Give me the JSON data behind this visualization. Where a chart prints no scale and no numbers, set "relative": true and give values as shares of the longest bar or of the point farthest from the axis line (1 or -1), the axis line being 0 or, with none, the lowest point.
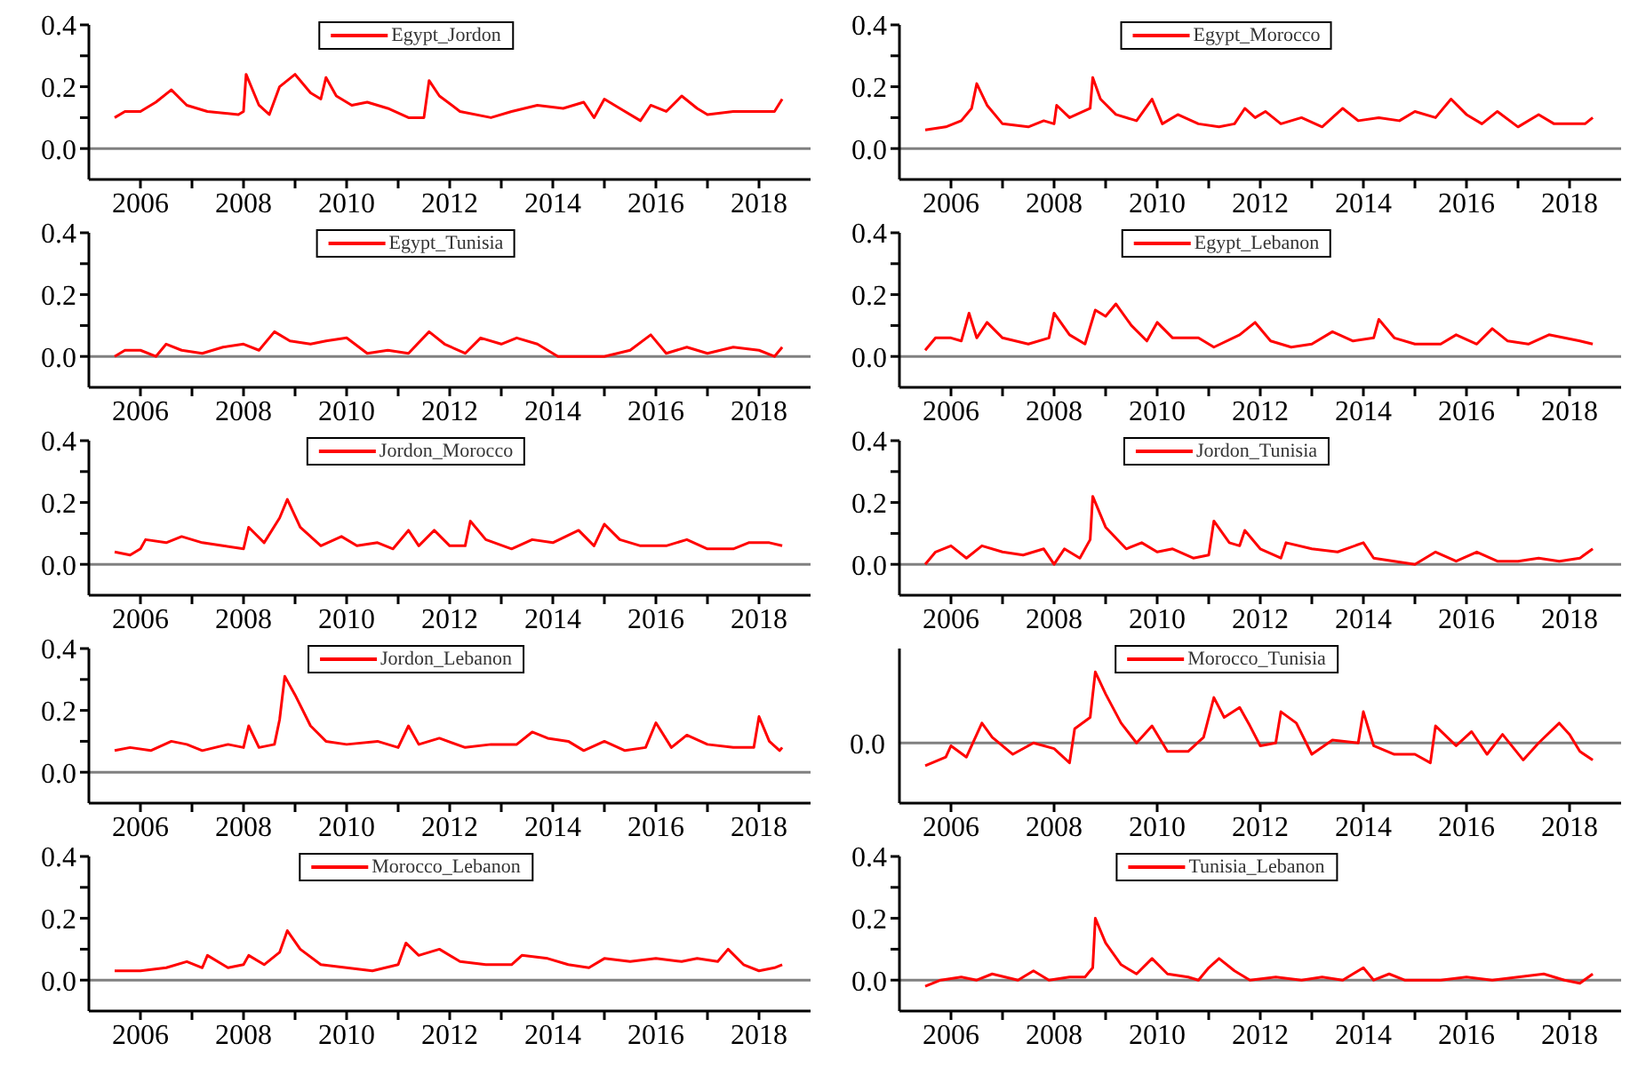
{
  "chart_data": [
    {
      "type": "line",
      "legend": "top",
      "marker": "none",
      "line_style": "solid",
      "xlim": [
        2005,
        2019
      ],
      "xticks": [
        2006,
        {
          "value": 2007,
          "label": null
        },
        2008,
        {
          "value": 2009,
          "label": null
        },
        2010,
        {
          "value": 2011,
          "label": null
        },
        2012,
        {
          "value": 2013,
          "label": null
        },
        2014,
        {
          "value": 2015,
          "label": null
        },
        2016,
        {
          "value": 2017,
          "label": null
        },
        2018
      ],
      "ylim": [
        -0.1,
        0.4
      ],
      "yticks": [
        {
          "value": 0,
          "label": "0.0"
        },
        {
          "value": 0.1,
          "label": null
        },
        {
          "value": 0.2,
          "label": "0.2"
        },
        {
          "value": 0.3,
          "label": null
        },
        {
          "value": 0.4,
          "label": "0.4"
        }
      ],
      "ref_lines": [
        {
          "axis": "y",
          "value": 0,
          "color": "#808080"
        }
      ],
      "x": [
        2005.5,
        2005.7,
        2006.0,
        2006.3,
        2006.6,
        2006.9,
        2007.3,
        2007.9,
        2008.0,
        2008.05,
        2008.3,
        2008.5,
        2008.7,
        2009.0,
        2009.3,
        2009.5,
        2009.6,
        2009.8,
        2010.1,
        2010.4,
        2010.8,
        2011.2,
        2011.5,
        2011.6,
        2011.8,
        2012.2,
        2012.8,
        2013.2,
        2013.7,
        2014.2,
        2014.6,
        2014.8,
        2015.0,
        2015.3,
        2015.7,
        2015.9,
        2016.2,
        2016.5,
        2016.8,
        2017.0,
        2017.5,
        2018.0,
        2018.3,
        2018.45
      ],
      "series": [
        {
          "name": "Egypt_Jordon",
          "color": "#ff0000",
          "values": [
            0.1,
            0.12,
            0.12,
            0.15,
            0.19,
            0.14,
            0.12,
            0.11,
            0.12,
            0.24,
            0.14,
            0.11,
            0.2,
            0.24,
            0.18,
            0.16,
            0.23,
            0.17,
            0.14,
            0.15,
            0.13,
            0.1,
            0.1,
            0.22,
            0.17,
            0.12,
            0.1,
            0.12,
            0.14,
            0.13,
            0.15,
            0.1,
            0.16,
            0.13,
            0.09,
            0.14,
            0.12,
            0.17,
            0.13,
            0.11,
            0.12,
            0.12,
            0.12,
            0.16
          ]
        }
      ]
    },
    {
      "type": "line",
      "legend": "top",
      "marker": "none",
      "line_style": "solid",
      "xlim": [
        2005,
        2019
      ],
      "xticks": [
        2006,
        {
          "value": 2007,
          "label": null
        },
        2008,
        {
          "value": 2009,
          "label": null
        },
        2010,
        {
          "value": 2011,
          "label": null
        },
        2012,
        {
          "value": 2013,
          "label": null
        },
        2014,
        {
          "value": 2015,
          "label": null
        },
        2016,
        {
          "value": 2017,
          "label": null
        },
        2018
      ],
      "ylim": [
        -0.1,
        0.4
      ],
      "yticks": [
        {
          "value": 0,
          "label": "0.0"
        },
        {
          "value": 0.1,
          "label": null
        },
        {
          "value": 0.2,
          "label": "0.2"
        },
        {
          "value": 0.3,
          "label": null
        },
        {
          "value": 0.4,
          "label": "0.4"
        }
      ],
      "ref_lines": [
        {
          "axis": "y",
          "value": 0,
          "color": "#808080"
        }
      ],
      "x": [
        2005.5,
        2005.9,
        2006.2,
        2006.4,
        2006.5,
        2006.7,
        2007.0,
        2007.5,
        2007.8,
        2008.0,
        2008.05,
        2008.3,
        2008.7,
        2008.75,
        2008.9,
        2009.2,
        2009.6,
        2009.9,
        2010.1,
        2010.4,
        2010.8,
        2011.2,
        2011.5,
        2011.7,
        2011.9,
        2012.1,
        2012.4,
        2012.8,
        2013.2,
        2013.6,
        2013.9,
        2014.3,
        2014.7,
        2015.0,
        2015.4,
        2015.7,
        2016.0,
        2016.3,
        2016.6,
        2017.0,
        2017.4,
        2017.7,
        2018.0,
        2018.3,
        2018.45
      ],
      "series": [
        {
          "name": "Egypt_Morocco",
          "color": "#ff0000",
          "values": [
            0.06,
            0.07,
            0.09,
            0.13,
            0.21,
            0.14,
            0.08,
            0.07,
            0.09,
            0.08,
            0.14,
            0.1,
            0.13,
            0.23,
            0.16,
            0.11,
            0.09,
            0.16,
            0.08,
            0.11,
            0.08,
            0.07,
            0.08,
            0.13,
            0.1,
            0.12,
            0.08,
            0.1,
            0.07,
            0.13,
            0.09,
            0.1,
            0.09,
            0.12,
            0.1,
            0.16,
            0.11,
            0.08,
            0.12,
            0.07,
            0.11,
            0.08,
            0.08,
            0.08,
            0.1
          ]
        }
      ]
    },
    {
      "type": "line",
      "legend": "top",
      "marker": "none",
      "line_style": "solid",
      "xlim": [
        2005,
        2019
      ],
      "xticks": [
        2006,
        {
          "value": 2007,
          "label": null
        },
        2008,
        {
          "value": 2009,
          "label": null
        },
        2010,
        {
          "value": 2011,
          "label": null
        },
        2012,
        {
          "value": 2013,
          "label": null
        },
        2014,
        {
          "value": 2015,
          "label": null
        },
        2016,
        {
          "value": 2017,
          "label": null
        },
        2018
      ],
      "ylim": [
        -0.1,
        0.4
      ],
      "yticks": [
        {
          "value": 0,
          "label": "0.0"
        },
        {
          "value": 0.1,
          "label": null
        },
        {
          "value": 0.2,
          "label": "0.2"
        },
        {
          "value": 0.3,
          "label": null
        },
        {
          "value": 0.4,
          "label": "0.4"
        }
      ],
      "ref_lines": [
        {
          "axis": "y",
          "value": 0,
          "color": "#808080"
        }
      ],
      "x": [
        2005.5,
        2005.7,
        2006.0,
        2006.3,
        2006.5,
        2006.8,
        2007.2,
        2007.6,
        2008.0,
        2008.3,
        2008.6,
        2008.9,
        2009.3,
        2009.6,
        2010.0,
        2010.4,
        2010.8,
        2011.2,
        2011.6,
        2011.9,
        2012.3,
        2012.6,
        2013.0,
        2013.3,
        2013.7,
        2014.1,
        2014.5,
        2015.0,
        2015.5,
        2015.9,
        2016.2,
        2016.6,
        2017.0,
        2017.5,
        2018.0,
        2018.3,
        2018.45
      ],
      "series": [
        {
          "name": "Egypt_Tunisia",
          "color": "#ff0000",
          "values": [
            0.0,
            0.02,
            0.02,
            0.0,
            0.04,
            0.02,
            0.01,
            0.03,
            0.04,
            0.02,
            0.08,
            0.05,
            0.04,
            0.05,
            0.06,
            0.01,
            0.02,
            0.01,
            0.08,
            0.04,
            0.01,
            0.06,
            0.04,
            0.06,
            0.04,
            0.0,
            0.0,
            0.0,
            0.02,
            0.07,
            0.01,
            0.03,
            0.01,
            0.03,
            0.02,
            0.0,
            0.03
          ]
        }
      ]
    },
    {
      "type": "line",
      "legend": "top",
      "marker": "none",
      "line_style": "solid",
      "xlim": [
        2005,
        2019
      ],
      "xticks": [
        2006,
        {
          "value": 2007,
          "label": null
        },
        2008,
        {
          "value": 2009,
          "label": null
        },
        2010,
        {
          "value": 2011,
          "label": null
        },
        2012,
        {
          "value": 2013,
          "label": null
        },
        2014,
        {
          "value": 2015,
          "label": null
        },
        2016,
        {
          "value": 2017,
          "label": null
        },
        2018
      ],
      "ylim": [
        -0.1,
        0.4
      ],
      "yticks": [
        {
          "value": 0,
          "label": "0.0"
        },
        {
          "value": 0.1,
          "label": null
        },
        {
          "value": 0.2,
          "label": "0.2"
        },
        {
          "value": 0.3,
          "label": null
        },
        {
          "value": 0.4,
          "label": "0.4"
        }
      ],
      "ref_lines": [
        {
          "axis": "y",
          "value": 0,
          "color": "#808080"
        }
      ],
      "x": [
        2005.5,
        2005.7,
        2006.0,
        2006.2,
        2006.35,
        2006.5,
        2006.7,
        2007.0,
        2007.5,
        2007.9,
        2008.0,
        2008.3,
        2008.6,
        2008.8,
        2009.0,
        2009.2,
        2009.5,
        2009.8,
        2010.0,
        2010.3,
        2010.8,
        2011.1,
        2011.6,
        2011.9,
        2012.2,
        2012.6,
        2013.0,
        2013.4,
        2013.8,
        2014.2,
        2014.3,
        2014.6,
        2015.0,
        2015.5,
        2015.8,
        2016.2,
        2016.5,
        2016.8,
        2017.2,
        2017.6,
        2017.9,
        2018.2,
        2018.45
      ],
      "series": [
        {
          "name": "Egypt_Lebanon",
          "color": "#ff0000",
          "values": [
            0.02,
            0.06,
            0.06,
            0.05,
            0.14,
            0.06,
            0.11,
            0.06,
            0.04,
            0.06,
            0.14,
            0.07,
            0.04,
            0.15,
            0.13,
            0.17,
            0.1,
            0.05,
            0.11,
            0.06,
            0.06,
            0.03,
            0.07,
            0.11,
            0.05,
            0.03,
            0.04,
            0.08,
            0.05,
            0.06,
            0.12,
            0.06,
            0.04,
            0.04,
            0.07,
            0.04,
            0.09,
            0.05,
            0.04,
            0.07,
            0.06,
            0.05,
            0.04
          ]
        }
      ]
    },
    {
      "type": "line",
      "legend": "top",
      "marker": "none",
      "line_style": "solid",
      "xlim": [
        2005,
        2019
      ],
      "xticks": [
        2006,
        {
          "value": 2007,
          "label": null
        },
        2008,
        {
          "value": 2009,
          "label": null
        },
        2010,
        {
          "value": 2011,
          "label": null
        },
        2012,
        {
          "value": 2013,
          "label": null
        },
        2014,
        {
          "value": 2015,
          "label": null
        },
        2016,
        {
          "value": 2017,
          "label": null
        },
        2018
      ],
      "ylim": [
        -0.1,
        0.4
      ],
      "yticks": [
        {
          "value": 0,
          "label": "0.0"
        },
        {
          "value": 0.1,
          "label": null
        },
        {
          "value": 0.2,
          "label": "0.2"
        },
        {
          "value": 0.3,
          "label": null
        },
        {
          "value": 0.4,
          "label": "0.4"
        }
      ],
      "ref_lines": [
        {
          "axis": "y",
          "value": 0,
          "color": "#808080"
        }
      ],
      "x": [
        2005.5,
        2005.8,
        2006.0,
        2006.1,
        2006.5,
        2006.8,
        2007.2,
        2007.6,
        2008.0,
        2008.1,
        2008.4,
        2008.7,
        2008.85,
        2009.1,
        2009.5,
        2009.9,
        2010.2,
        2010.6,
        2010.9,
        2011.2,
        2011.4,
        2011.7,
        2012.0,
        2012.3,
        2012.4,
        2012.7,
        2013.2,
        2013.6,
        2014.0,
        2014.5,
        2014.8,
        2015.0,
        2015.3,
        2015.7,
        2016.2,
        2016.6,
        2017.0,
        2017.5,
        2017.8,
        2018.2,
        2018.45
      ],
      "series": [
        {
          "name": "Jordon_Morocco",
          "color": "#ff0000",
          "values": [
            0.04,
            0.03,
            0.05,
            0.08,
            0.07,
            0.09,
            0.07,
            0.06,
            0.05,
            0.12,
            0.07,
            0.15,
            0.21,
            0.12,
            0.06,
            0.09,
            0.06,
            0.07,
            0.05,
            0.11,
            0.06,
            0.11,
            0.06,
            0.06,
            0.14,
            0.08,
            0.05,
            0.08,
            0.07,
            0.11,
            0.06,
            0.13,
            0.08,
            0.06,
            0.06,
            0.08,
            0.05,
            0.05,
            0.07,
            0.07,
            0.06
          ]
        }
      ]
    },
    {
      "type": "line",
      "legend": "top",
      "marker": "none",
      "line_style": "solid",
      "xlim": [
        2005,
        2019
      ],
      "xticks": [
        2006,
        {
          "value": 2007,
          "label": null
        },
        2008,
        {
          "value": 2009,
          "label": null
        },
        2010,
        {
          "value": 2011,
          "label": null
        },
        2012,
        {
          "value": 2013,
          "label": null
        },
        2014,
        {
          "value": 2015,
          "label": null
        },
        2016,
        {
          "value": 2017,
          "label": null
        },
        2018
      ],
      "ylim": [
        -0.1,
        0.4
      ],
      "yticks": [
        {
          "value": 0,
          "label": "0.0"
        },
        {
          "value": 0.1,
          "label": null
        },
        {
          "value": 0.2,
          "label": "0.2"
        },
        {
          "value": 0.3,
          "label": null
        },
        {
          "value": 0.4,
          "label": "0.4"
        }
      ],
      "ref_lines": [
        {
          "axis": "y",
          "value": 0,
          "color": "#808080"
        }
      ],
      "x": [
        2005.5,
        2005.7,
        2006.0,
        2006.3,
        2006.6,
        2007.0,
        2007.4,
        2007.8,
        2008.0,
        2008.2,
        2008.5,
        2008.7,
        2008.75,
        2009.0,
        2009.4,
        2009.7,
        2010.0,
        2010.3,
        2010.7,
        2011.0,
        2011.1,
        2011.4,
        2011.6,
        2011.7,
        2012.0,
        2012.4,
        2012.5,
        2013.0,
        2013.5,
        2014.0,
        2014.2,
        2014.6,
        2015.0,
        2015.4,
        2015.8,
        2016.2,
        2016.6,
        2017.0,
        2017.4,
        2017.8,
        2018.2,
        2018.45
      ],
      "series": [
        {
          "name": "Jordon_Tunisia",
          "color": "#ff0000",
          "values": [
            0.0,
            0.04,
            0.06,
            0.02,
            0.06,
            0.04,
            0.03,
            0.05,
            0.0,
            0.05,
            0.02,
            0.08,
            0.22,
            0.12,
            0.05,
            0.07,
            0.04,
            0.05,
            0.02,
            0.03,
            0.14,
            0.07,
            0.06,
            0.11,
            0.05,
            0.02,
            0.07,
            0.05,
            0.04,
            0.07,
            0.02,
            0.01,
            0.0,
            0.04,
            0.01,
            0.04,
            0.01,
            0.01,
            0.02,
            0.01,
            0.02,
            0.05
          ]
        }
      ]
    },
    {
      "type": "line",
      "legend": "top",
      "marker": "none",
      "line_style": "solid",
      "xlim": [
        2005,
        2019
      ],
      "xticks": [
        2006,
        {
          "value": 2007,
          "label": null
        },
        2008,
        {
          "value": 2009,
          "label": null
        },
        2010,
        {
          "value": 2011,
          "label": null
        },
        2012,
        {
          "value": 2013,
          "label": null
        },
        2014,
        {
          "value": 2015,
          "label": null
        },
        2016,
        {
          "value": 2017,
          "label": null
        },
        2018
      ],
      "ylim": [
        -0.1,
        0.4
      ],
      "yticks": [
        {
          "value": 0,
          "label": "0.0"
        },
        {
          "value": 0.1,
          "label": null
        },
        {
          "value": 0.2,
          "label": "0.2"
        },
        {
          "value": 0.3,
          "label": null
        },
        {
          "value": 0.4,
          "label": "0.4"
        }
      ],
      "ref_lines": [
        {
          "axis": "y",
          "value": 0,
          "color": "#808080"
        }
      ],
      "x": [
        2005.5,
        2005.8,
        2006.2,
        2006.6,
        2006.9,
        2007.2,
        2007.7,
        2008.0,
        2008.1,
        2008.3,
        2008.6,
        2008.7,
        2008.8,
        2009.0,
        2009.3,
        2009.6,
        2010.0,
        2010.6,
        2011.0,
        2011.2,
        2011.4,
        2011.8,
        2012.3,
        2012.8,
        2013.3,
        2013.6,
        2013.9,
        2014.3,
        2014.6,
        2015.0,
        2015.4,
        2015.8,
        2016.0,
        2016.3,
        2016.6,
        2017.0,
        2017.5,
        2017.9,
        2018.0,
        2018.2,
        2018.4,
        2018.45
      ],
      "series": [
        {
          "name": "Jordon_Lebanon",
          "color": "#ff0000",
          "values": [
            0.07,
            0.08,
            0.07,
            0.1,
            0.09,
            0.07,
            0.09,
            0.08,
            0.15,
            0.08,
            0.09,
            0.17,
            0.31,
            0.25,
            0.15,
            0.1,
            0.09,
            0.1,
            0.08,
            0.15,
            0.09,
            0.11,
            0.08,
            0.09,
            0.09,
            0.13,
            0.11,
            0.1,
            0.07,
            0.1,
            0.07,
            0.08,
            0.16,
            0.08,
            0.12,
            0.09,
            0.08,
            0.08,
            0.18,
            0.1,
            0.07,
            0.08
          ]
        }
      ]
    },
    {
      "type": "line",
      "legend": "top",
      "marker": "none",
      "line_style": "solid",
      "relative": true,
      "xlim": [
        2005,
        2019
      ],
      "xticks": [
        2006,
        2008,
        2010,
        2012,
        2014,
        2016,
        2018
      ],
      "ref_lines": [
        {
          "axis": "y",
          "value": 0,
          "color": "#808080",
          "label": "0.0"
        }
      ],
      "x": [
        2005.5,
        2005.9,
        2006.0,
        2006.3,
        2006.6,
        2006.8,
        2007.2,
        2007.6,
        2008.0,
        2008.3,
        2008.4,
        2008.7,
        2008.8,
        2009.0,
        2009.3,
        2009.6,
        2009.9,
        2010.2,
        2010.6,
        2010.9,
        2011.1,
        2011.3,
        2011.6,
        2011.8,
        2012.0,
        2012.3,
        2012.4,
        2012.7,
        2013.0,
        2013.4,
        2013.9,
        2014.0,
        2014.2,
        2014.6,
        2015.0,
        2015.3,
        2015.4,
        2015.8,
        2016.1,
        2016.4,
        2016.7,
        2017.1,
        2017.4,
        2017.8,
        2018.0,
        2018.2,
        2018.45
      ],
      "series": [
        {
          "name": "Morocco_Tunisia",
          "color": "#ff0000",
          "values": [
            -0.32,
            -0.2,
            -0.04,
            -0.2,
            0.28,
            0.08,
            -0.16,
            0,
            -0.08,
            -0.28,
            0.2,
            0.36,
            1,
            0.69,
            0.28,
            0,
            0.24,
            -0.12,
            -0.12,
            0.08,
            0.64,
            0.36,
            0.5,
            0.24,
            -0.04,
            0,
            0.44,
            0.28,
            -0.16,
            0.04,
            0,
            0.44,
            -0.04,
            -0.16,
            -0.16,
            -0.28,
            0.24,
            -0.04,
            0.16,
            -0.16,
            0.12,
            -0.24,
            0,
            0.28,
            0.12,
            -0.12,
            -0.24
          ]
        }
      ]
    },
    {
      "type": "line",
      "legend": "top",
      "marker": "none",
      "line_style": "solid",
      "xlim": [
        2005,
        2019
      ],
      "xticks": [
        2006,
        {
          "value": 2007,
          "label": null
        },
        2008,
        {
          "value": 2009,
          "label": null
        },
        2010,
        {
          "value": 2011,
          "label": null
        },
        2012,
        {
          "value": 2013,
          "label": null
        },
        2014,
        {
          "value": 2015,
          "label": null
        },
        2016,
        {
          "value": 2017,
          "label": null
        },
        2018
      ],
      "ylim": [
        -0.1,
        0.4
      ],
      "yticks": [
        {
          "value": 0,
          "label": "0.0"
        },
        {
          "value": 0.1,
          "label": null
        },
        {
          "value": 0.2,
          "label": "0.2"
        },
        {
          "value": 0.3,
          "label": null
        },
        {
          "value": 0.4,
          "label": "0.4"
        }
      ],
      "ref_lines": [
        {
          "axis": "y",
          "value": 0,
          "color": "#808080"
        }
      ],
      "x": [
        2005.5,
        2006.0,
        2006.5,
        2006.9,
        2007.2,
        2007.3,
        2007.7,
        2008.0,
        2008.1,
        2008.4,
        2008.7,
        2008.85,
        2009.1,
        2009.5,
        2010.0,
        2010.5,
        2011.0,
        2011.15,
        2011.4,
        2011.8,
        2012.2,
        2012.7,
        2013.2,
        2013.4,
        2013.9,
        2014.3,
        2014.7,
        2015.0,
        2015.5,
        2016.0,
        2016.5,
        2016.8,
        2017.2,
        2017.4,
        2017.7,
        2018.0,
        2018.3,
        2018.45
      ],
      "series": [
        {
          "name": "Morocco_Lebanon",
          "color": "#ff0000",
          "values": [
            0.03,
            0.03,
            0.04,
            0.06,
            0.04,
            0.08,
            0.04,
            0.05,
            0.08,
            0.05,
            0.09,
            0.16,
            0.1,
            0.05,
            0.04,
            0.03,
            0.05,
            0.12,
            0.08,
            0.1,
            0.06,
            0.05,
            0.05,
            0.08,
            0.07,
            0.05,
            0.04,
            0.07,
            0.06,
            0.07,
            0.06,
            0.07,
            0.06,
            0.1,
            0.05,
            0.03,
            0.04,
            0.05
          ]
        }
      ]
    },
    {
      "type": "line",
      "legend": "top",
      "marker": "none",
      "line_style": "solid",
      "xlim": [
        2005,
        2019
      ],
      "xticks": [
        2006,
        {
          "value": 2007,
          "label": null
        },
        2008,
        {
          "value": 2009,
          "label": null
        },
        2010,
        {
          "value": 2011,
          "label": null
        },
        2012,
        {
          "value": 2013,
          "label": null
        },
        2014,
        {
          "value": 2015,
          "label": null
        },
        2016,
        {
          "value": 2017,
          "label": null
        },
        2018
      ],
      "ylim": [
        -0.1,
        0.4
      ],
      "yticks": [
        {
          "value": 0,
          "label": "0.0"
        },
        {
          "value": 0.1,
          "label": null
        },
        {
          "value": 0.2,
          "label": "0.2"
        },
        {
          "value": 0.3,
          "label": null
        },
        {
          "value": 0.4,
          "label": "0.4"
        }
      ],
      "ref_lines": [
        {
          "axis": "y",
          "value": 0,
          "color": "#808080"
        }
      ],
      "x": [
        2005.5,
        2005.8,
        2006.2,
        2006.5,
        2006.8,
        2007.3,
        2007.6,
        2007.9,
        2008.3,
        2008.6,
        2008.75,
        2008.8,
        2009.0,
        2009.3,
        2009.6,
        2009.9,
        2010.2,
        2010.6,
        2010.8,
        2011.0,
        2011.2,
        2011.5,
        2011.8,
        2012.3,
        2012.8,
        2013.2,
        2013.6,
        2014.0,
        2014.2,
        2014.5,
        2014.8,
        2015.5,
        2016.0,
        2016.5,
        2017.0,
        2017.5,
        2017.9,
        2018.2,
        2018.45
      ],
      "series": [
        {
          "name": "Tunisia_Lebanon",
          "color": "#ff0000",
          "values": [
            -0.02,
            0.0,
            0.01,
            0.0,
            0.02,
            0.0,
            0.03,
            0.0,
            0.01,
            0.01,
            0.04,
            0.2,
            0.12,
            0.05,
            0.02,
            0.07,
            0.02,
            0.01,
            0.0,
            0.04,
            0.07,
            0.03,
            0.0,
            0.01,
            0.0,
            0.01,
            0.0,
            0.04,
            0.0,
            0.02,
            0.0,
            0.0,
            0.01,
            0.0,
            0.01,
            0.02,
            0.0,
            -0.01,
            0.02
          ]
        }
      ]
    }
  ]
}
